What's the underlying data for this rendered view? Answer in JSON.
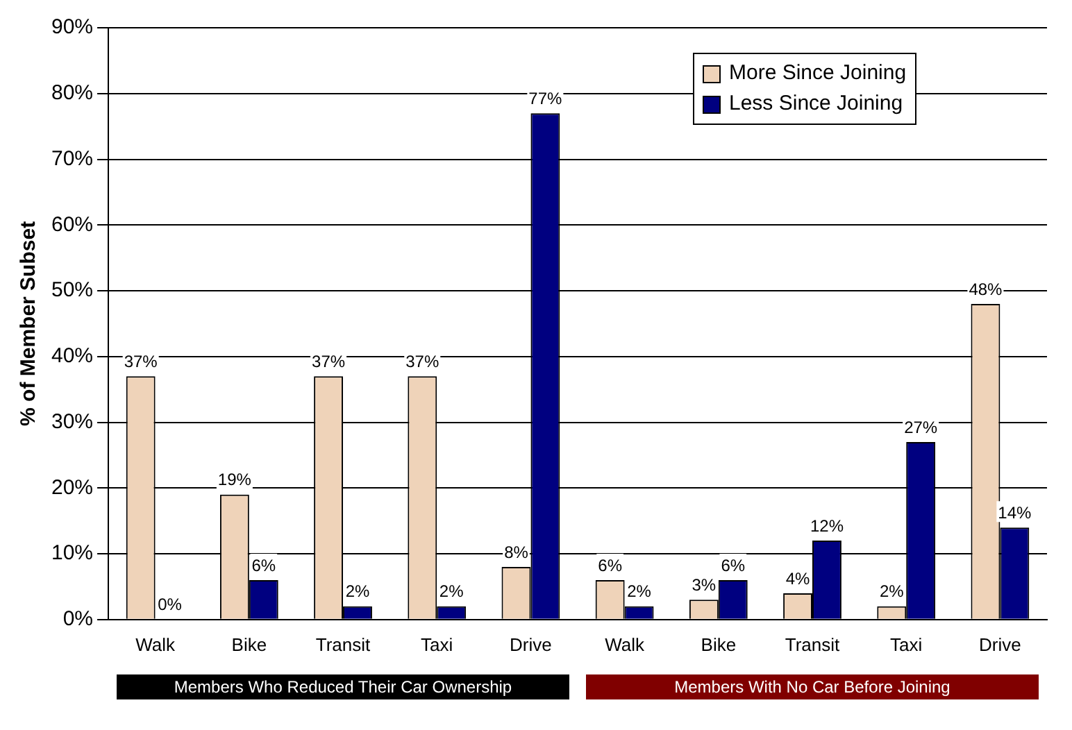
{
  "chart_data": {
    "type": "bar",
    "ylabel": "% of Member Subset",
    "categories": [
      "Walk",
      "Bike",
      "Transit",
      "Taxi",
      "Drive",
      "Walk",
      "Bike",
      "Transit",
      "Taxi",
      "Drive"
    ],
    "series": [
      {
        "name": "More Since Joining",
        "color": "#efd3b9",
        "values": [
          37,
          19,
          37,
          37,
          8,
          6,
          3,
          4,
          2,
          48
        ],
        "value_labels": [
          "37%",
          "19%",
          "37%",
          "37%",
          "8%",
          "6%",
          "3%",
          "4%",
          "2%",
          "48%"
        ]
      },
      {
        "name": "Less Since Joining",
        "color": "#000080",
        "values": [
          0,
          6,
          2,
          2,
          77,
          2,
          6,
          12,
          27,
          14
        ],
        "value_labels": [
          "0%",
          "6%",
          "2%",
          "2%",
          "77%",
          "2%",
          "6%",
          "12%",
          "27%",
          "14%"
        ]
      }
    ],
    "ylim": [
      0,
      90
    ],
    "yticks": [
      {
        "value": 0,
        "label": "0%"
      },
      {
        "value": 10,
        "label": "10%"
      },
      {
        "value": 20,
        "label": "20%"
      },
      {
        "value": 30,
        "label": "30%"
      },
      {
        "value": 40,
        "label": "40%"
      },
      {
        "value": 50,
        "label": "50%"
      },
      {
        "value": 60,
        "label": "60%"
      },
      {
        "value": 70,
        "label": "70%"
      },
      {
        "value": 80,
        "label": "80%"
      },
      {
        "value": 90,
        "label": "90%"
      }
    ],
    "grid": "y",
    "legend": "top right",
    "annotations": [
      "Members Who Reduced Their Car Ownership",
      "Members With No Car Before Joining"
    ]
  }
}
